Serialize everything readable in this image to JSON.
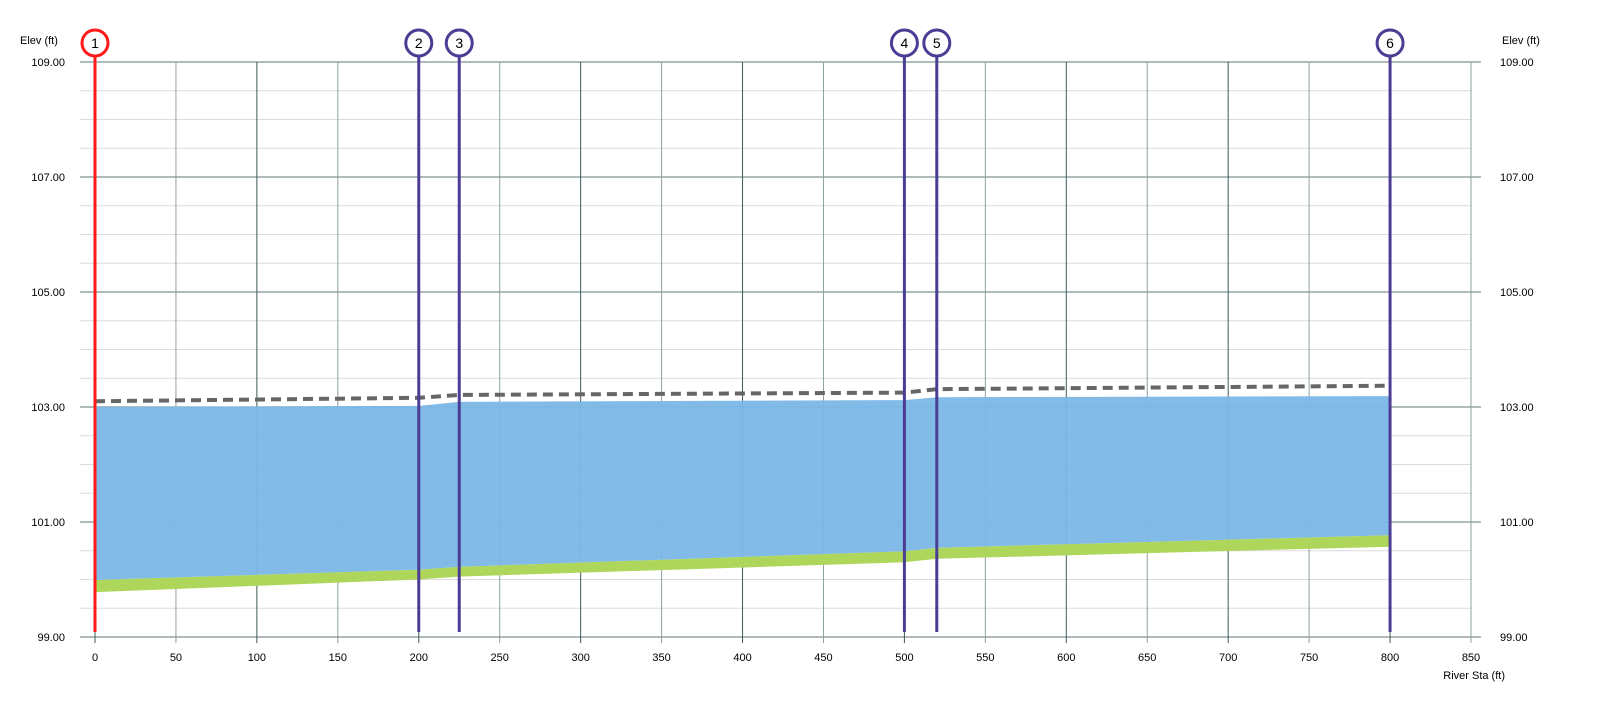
{
  "chart_data": {
    "type": "area",
    "ylabel_left": "Elev (ft)",
    "ylabel_right": "Elev (ft)",
    "xlabel": "River Sta (ft)",
    "xlim": [
      0,
      850
    ],
    "ylim": [
      99,
      109
    ],
    "x_ticks": [
      0,
      50,
      100,
      150,
      200,
      250,
      300,
      350,
      400,
      450,
      500,
      550,
      600,
      650,
      700,
      750,
      800,
      850
    ],
    "y_ticks": [
      "99.00",
      "101.00",
      "103.00",
      "105.00",
      "107.00",
      "109.00"
    ],
    "y_minor_step": 0.5,
    "grid": true,
    "stations": [
      0,
      200,
      225,
      500,
      520,
      800
    ],
    "markers": [
      {
        "label": "1",
        "station": 0,
        "color": "#ff1a1a"
      },
      {
        "label": "2",
        "station": 200,
        "color": "#4b3d94"
      },
      {
        "label": "3",
        "station": 225,
        "color": "#4b3d94"
      },
      {
        "label": "4",
        "station": 500,
        "color": "#4b3d94"
      },
      {
        "label": "5",
        "station": 520,
        "color": "#4b3d94"
      },
      {
        "label": "6",
        "station": 800,
        "color": "#4b3d94"
      }
    ],
    "series": [
      {
        "key": "water",
        "style": "fill",
        "color": "#7bb7e6",
        "values": [
          103.0,
          103.02,
          103.09,
          103.12,
          103.17,
          103.19
        ]
      },
      {
        "key": "dashed",
        "style": "dashed-line",
        "color": "#666666",
        "values": [
          103.1,
          103.16,
          103.21,
          103.25,
          103.31,
          103.37
        ]
      },
      {
        "key": "ground_top",
        "style": "band-top",
        "color": "#aed65a",
        "values": [
          99.99,
          100.17,
          100.22,
          100.49,
          100.55,
          100.77
        ]
      },
      {
        "key": "ground_bottom",
        "style": "band-bottom",
        "color": "#aed65a",
        "values": [
          99.78,
          100.0,
          100.05,
          100.3,
          100.36,
          100.57
        ]
      }
    ]
  }
}
